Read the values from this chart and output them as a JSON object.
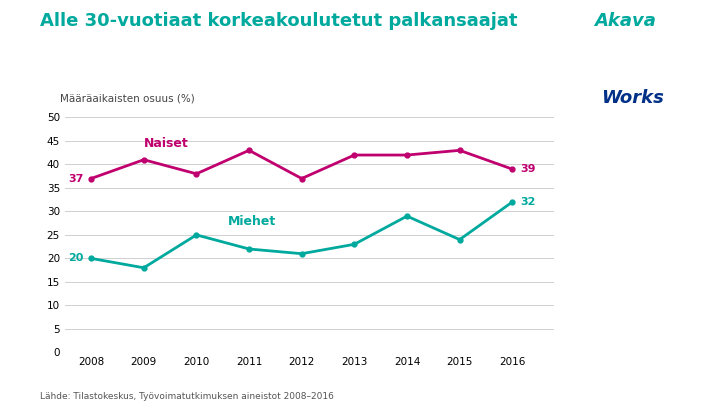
{
  "title": "Alle 30-vuotiaat korkeakoulutetut palkansaajat",
  "ylabel": "Määräaikaisten osuus (%)",
  "source": "Lähde: Tilastokeskus, Työvoimatutkimuksen aineistot 2008–2016",
  "years": [
    2008,
    2009,
    2010,
    2011,
    2012,
    2013,
    2014,
    2015,
    2016
  ],
  "naiset": [
    37,
    41,
    38,
    43,
    37,
    42,
    42,
    43,
    39
  ],
  "miehet": [
    20,
    18,
    25,
    22,
    21,
    23,
    29,
    24,
    32
  ],
  "naiset_color": "#c0006e",
  "miehet_color": "#00a99d",
  "naiset_label": "Naiset",
  "miehet_label": "Miehet",
  "naiset_start_label": "37",
  "naiset_end_label": "39",
  "miehet_start_label": "20",
  "miehet_end_label": "32",
  "ylim": [
    0,
    50
  ],
  "yticks": [
    0,
    5,
    10,
    15,
    20,
    25,
    30,
    35,
    40,
    45,
    50
  ],
  "bg_color": "#ffffff",
  "plot_bg_color": "#ffffff",
  "grid_color": "#d0d0d0",
  "title_color": "#00a99d",
  "akava_teal": "#00a99d",
  "akava_blue": "#003087",
  "deco_teal": "#b2e0dc",
  "deco_blue": "#b2d4e8"
}
